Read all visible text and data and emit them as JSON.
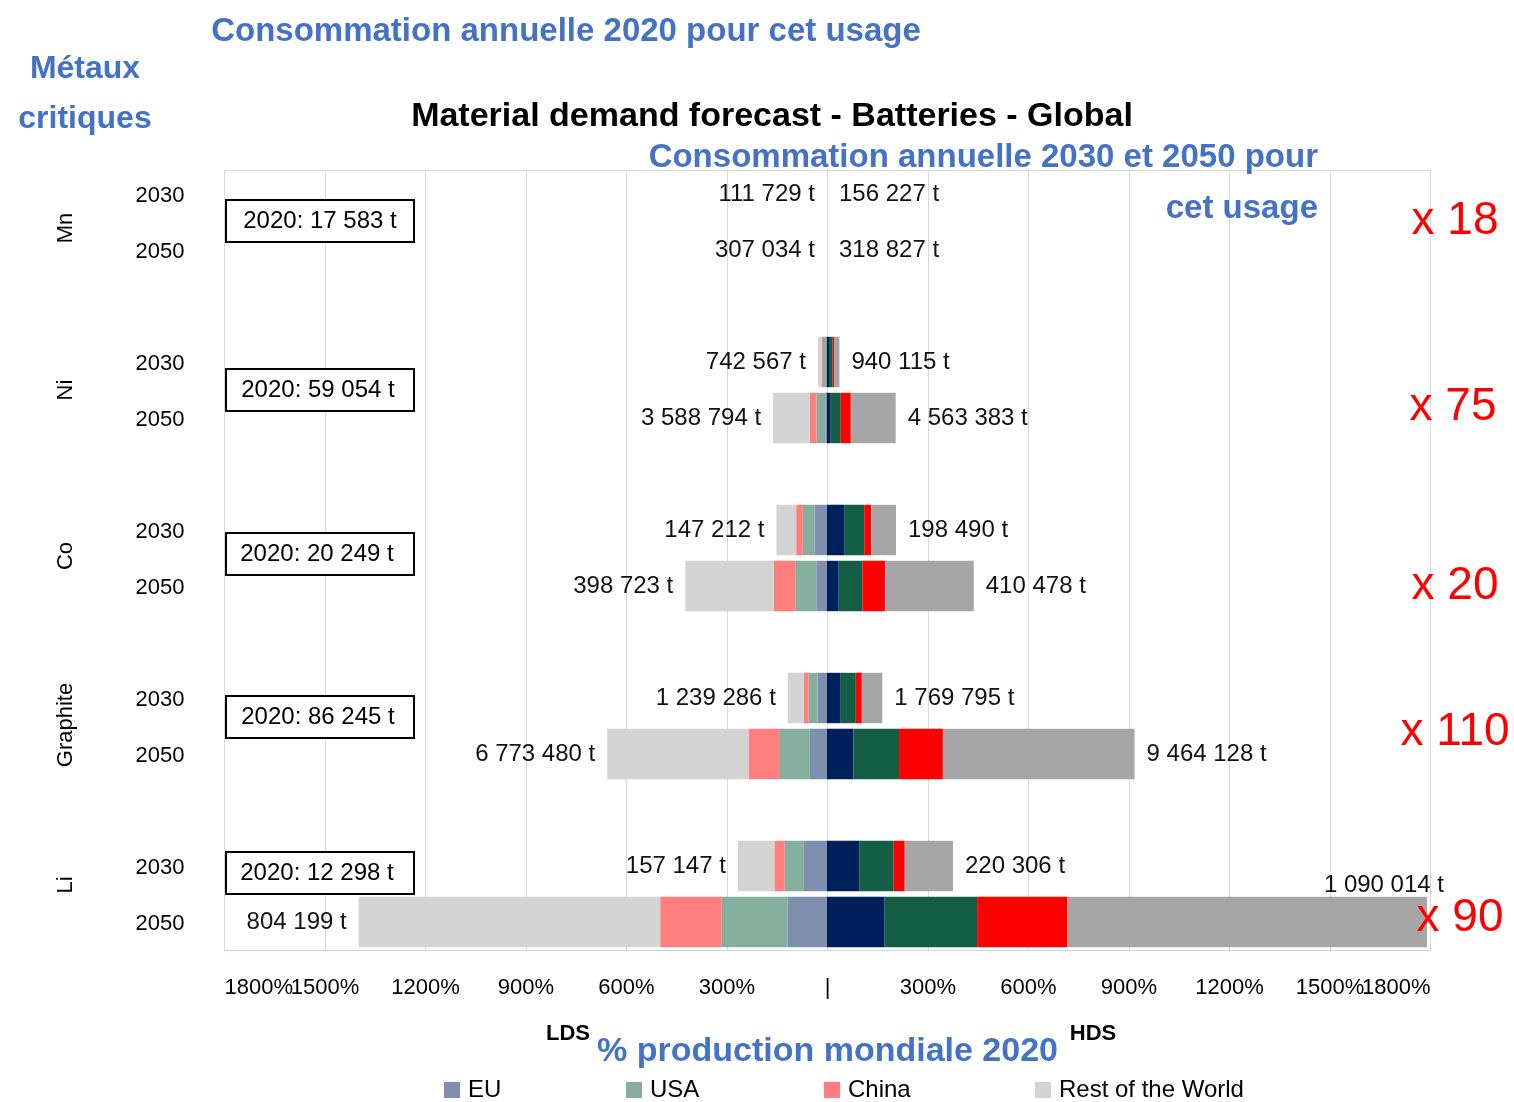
{
  "chart_data": {
    "type": "bar",
    "orientation": "horizontal",
    "stacked": true,
    "title": "Material demand forecast - Batteries - Global",
    "xlabel": "% production mondiale 2020",
    "categories": [
      "2030",
      "2050",
      "2030",
      "2050",
      "2030",
      "2050",
      "2030",
      "2050",
      "2030",
      "2050"
    ],
    "series": [
      {
        "name": "EU",
        "color": "#7f8fb0",
        "values": [
          0,
          0,
          -5,
          -5,
          -37,
          -32,
          -28,
          -51,
          -69,
          -117
        ]
      },
      {
        "name": "USA",
        "color": "#85ae9e",
        "values": [
          0,
          0,
          -7,
          -26,
          -35,
          -63,
          -27,
          -92,
          -57,
          -197
        ]
      },
      {
        "name": "China",
        "color": "#ff7f7f",
        "values": [
          0,
          0,
          -4,
          -20,
          -20,
          -64,
          -14,
          -90,
          -31,
          -184
        ]
      },
      {
        "name": "Rest of the World",
        "color": "#d3d3d3",
        "values": [
          0,
          0,
          -11,
          -110,
          -59,
          -264,
          -48,
          -423,
          -109,
          -900
        ]
      },
      {
        "color": "#00205b",
        "values": [
          0,
          0,
          6,
          11,
          51,
          35,
          41,
          79,
          96,
          172
        ]
      },
      {
        "color": "#135e45",
        "values": [
          0,
          0,
          11,
          30,
          60,
          71,
          45,
          136,
          103,
          276
        ]
      },
      {
        "color": "#ff0000",
        "values": [
          0,
          0,
          4,
          30,
          21,
          67,
          18,
          131,
          33,
          270
        ]
      },
      {
        "color": "#a6a6a6",
        "values": [
          0,
          0,
          16,
          134,
          74,
          265,
          61,
          572,
          144,
          1073
        ]
      }
    ],
    "xlim": [
      -1800,
      1800
    ],
    "xticks": [
      {
        "value": -1800,
        "label": "1800%"
      },
      {
        "value": -1500,
        "label": "1500%"
      },
      {
        "value": -1200,
        "label": "1200%"
      },
      {
        "value": -900,
        "label": "900%"
      },
      {
        "value": -600,
        "label": "600%"
      },
      {
        "value": -300,
        "label": "300%"
      },
      {
        "value": 0,
        "label": "|"
      },
      {
        "value": 300,
        "label": "300%"
      },
      {
        "value": 600,
        "label": "600%"
      },
      {
        "value": 900,
        "label": "900%"
      },
      {
        "value": 1200,
        "label": "1200%"
      },
      {
        "value": 1500,
        "label": "1500%"
      },
      {
        "value": 1800,
        "label": "1800%"
      }
    ],
    "grid": "x",
    "legend": "bottom",
    "annotations": [
      "Métaux critiques",
      "Consommation annuelle 2020 pour cet usage",
      "Consommation annuelle 2030 et 2050 pour cet usage",
      "Mn",
      "Ni",
      "Co",
      "Graphite",
      "Li",
      "2020:  17 583 t",
      "2020:  59 054 t",
      "2020:  20 249 t",
      "2020:  86 245 t",
      "2020:  12 298 t",
      "x 18",
      "x 75",
      "x 20",
      "x 110",
      "x 90",
      "LDS",
      "HDS",
      "111 729 t",
      "156 227 t",
      "307 034 t",
      "318 827 t",
      "742 567 t",
      "940 115 t",
      "3 588 794 t",
      "4 563 383 t",
      "147 212 t",
      "198 490 t",
      "398 723 t",
      "410 478 t",
      "1 239 286 t",
      "1 769 795 t",
      "6 773 480 t",
      "9 464 128 t",
      "157 147 t",
      "220 306 t",
      "804 199 t",
      "1 090 014 t"
    ]
  }
}
